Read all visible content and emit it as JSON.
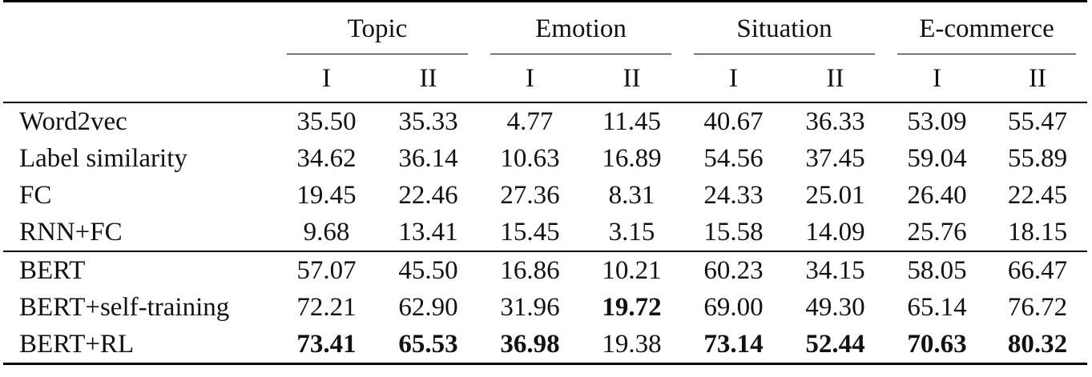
{
  "header": {
    "groups": [
      "Topic",
      "Emotion",
      "Situation",
      "E-commerce"
    ],
    "subcolumns": [
      "I",
      "II",
      "I",
      "II",
      "I",
      "II",
      "I",
      "II"
    ]
  },
  "sections": [
    {
      "rows": [
        {
          "method": "Word2vec",
          "values": [
            "35.50",
            "35.33",
            "4.77",
            "11.45",
            "40.67",
            "36.33",
            "53.09",
            "55.47"
          ],
          "bold": [
            false,
            false,
            false,
            false,
            false,
            false,
            false,
            false
          ]
        },
        {
          "method": "Label similarity",
          "values": [
            "34.62",
            "36.14",
            "10.63",
            "16.89",
            "54.56",
            "37.45",
            "59.04",
            "55.89"
          ],
          "bold": [
            false,
            false,
            false,
            false,
            false,
            false,
            false,
            false
          ]
        },
        {
          "method": "FC",
          "values": [
            "19.45",
            "22.46",
            "27.36",
            "8.31",
            "24.33",
            "25.01",
            "26.40",
            "22.45"
          ],
          "bold": [
            false,
            false,
            false,
            false,
            false,
            false,
            false,
            false
          ]
        },
        {
          "method": "RNN+FC",
          "values": [
            "9.68",
            "13.41",
            "15.45",
            "3.15",
            "15.58",
            "14.09",
            "25.76",
            "18.15"
          ],
          "bold": [
            false,
            false,
            false,
            false,
            false,
            false,
            false,
            false
          ]
        }
      ]
    },
    {
      "rows": [
        {
          "method": "BERT",
          "values": [
            "57.07",
            "45.50",
            "16.86",
            "10.21",
            "60.23",
            "34.15",
            "58.05",
            "66.47"
          ],
          "bold": [
            false,
            false,
            false,
            false,
            false,
            false,
            false,
            false
          ]
        },
        {
          "method": "BERT+self-training",
          "values": [
            "72.21",
            "62.90",
            "31.96",
            "19.72",
            "69.00",
            "49.30",
            "65.14",
            "76.72"
          ],
          "bold": [
            false,
            false,
            false,
            true,
            false,
            false,
            false,
            false
          ]
        },
        {
          "method": "BERT+RL",
          "values": [
            "73.41",
            "65.53",
            "36.98",
            "19.38",
            "73.14",
            "52.44",
            "70.63",
            "80.32"
          ],
          "bold": [
            true,
            true,
            true,
            false,
            true,
            true,
            true,
            true
          ]
        }
      ]
    }
  ]
}
